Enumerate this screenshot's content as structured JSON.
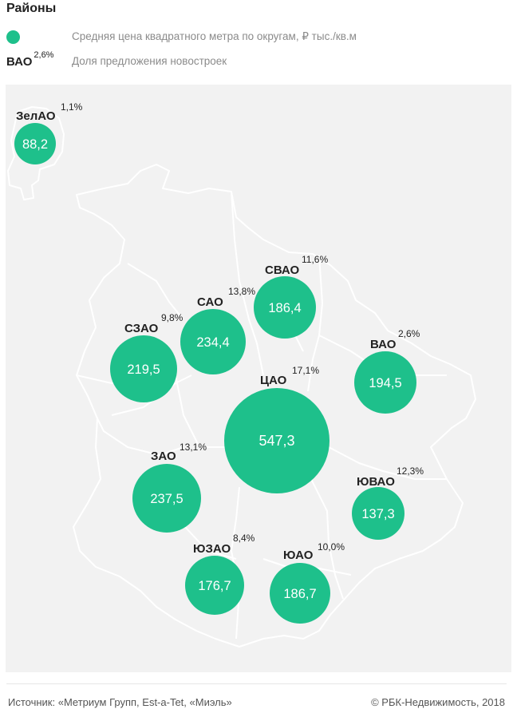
{
  "title": "Районы",
  "legend": {
    "price_label": "Средняя цена квадратного метра по округам, ₽ тыс./кв.м",
    "example_code": "ВАО",
    "example_share": "2,6%",
    "share_label": "Доля предложения новостроек"
  },
  "colors": {
    "bubble": "#1ec08b",
    "map_bg": "#f2f2f2",
    "border": "#ffffff"
  },
  "districts": [
    {
      "code": "ЗелАО",
      "share": "1,1%",
      "price": "88,2",
      "price_value": 88.2
    },
    {
      "code": "СЗАО",
      "share": "9,8%",
      "price": "219,5",
      "price_value": 219.5
    },
    {
      "code": "САО",
      "share": "13,8%",
      "price": "234,4",
      "price_value": 234.4
    },
    {
      "code": "СВАО",
      "share": "11,6%",
      "price": "186,4",
      "price_value": 186.4
    },
    {
      "code": "ВАО",
      "share": "2,6%",
      "price": "194,5",
      "price_value": 194.5
    },
    {
      "code": "ЦАО",
      "share": "17,1%",
      "price": "547,3",
      "price_value": 547.3
    },
    {
      "code": "ЗАО",
      "share": "13,1%",
      "price": "237,5",
      "price_value": 237.5
    },
    {
      "code": "ЮВАО",
      "share": "12,3%",
      "price": "137,3",
      "price_value": 137.3
    },
    {
      "code": "ЮЗАО",
      "share": "8,4%",
      "price": "176,7",
      "price_value": 176.7
    },
    {
      "code": "ЮАО",
      "share": "10,0%",
      "price": "186,7",
      "price_value": 186.7
    }
  ],
  "footer": {
    "source": "Источник: «Метриум Групп, Est-a-Tet, «Миэль»",
    "copyright": "© РБК-Недвижимость, 2018"
  }
}
